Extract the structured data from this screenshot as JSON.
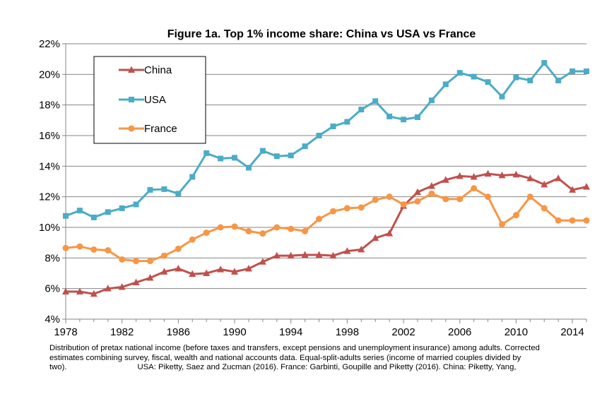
{
  "chart_data": {
    "type": "line",
    "title": "Figure 1a. Top 1% income share: China vs USA vs France",
    "xlabel": "",
    "ylabel": "",
    "xlim": [
      1978,
      2015
    ],
    "ylim": [
      4,
      22
    ],
    "x_ticks": [
      "1978",
      "1982",
      "1986",
      "1990",
      "1994",
      "1998",
      "2002",
      "2006",
      "2010",
      "2014"
    ],
    "y_ticks": [
      "4%",
      "6%",
      "8%",
      "10%",
      "12%",
      "14%",
      "16%",
      "18%",
      "20%",
      "22%"
    ],
    "grid": "horizontal",
    "legend_position": "top-left",
    "x": [
      1978,
      1979,
      1980,
      1981,
      1982,
      1983,
      1984,
      1985,
      1986,
      1987,
      1988,
      1989,
      1990,
      1991,
      1992,
      1993,
      1994,
      1995,
      1996,
      1997,
      1998,
      1999,
      2000,
      2001,
      2002,
      2003,
      2004,
      2005,
      2006,
      2007,
      2008,
      2009,
      2010,
      2011,
      2012,
      2013,
      2014,
      2015
    ],
    "series": [
      {
        "name": "China",
        "color": "#c0504d",
        "marker": "triangle",
        "values": [
          5.8,
          5.8,
          5.65,
          6.0,
          6.1,
          6.4,
          6.7,
          7.1,
          7.3,
          6.95,
          7.0,
          7.25,
          7.1,
          7.3,
          7.75,
          8.15,
          8.15,
          8.2,
          8.2,
          8.15,
          8.45,
          8.55,
          9.3,
          9.6,
          11.4,
          12.3,
          12.7,
          13.1,
          13.35,
          13.3,
          13.5,
          13.4,
          13.45,
          13.2,
          12.8,
          13.2,
          12.45,
          12.65
        ]
      },
      {
        "name": "USA",
        "color": "#4bacc6",
        "marker": "square",
        "values": [
          10.75,
          11.1,
          10.65,
          11.0,
          11.25,
          11.5,
          12.45,
          12.5,
          12.2,
          13.3,
          14.85,
          14.5,
          14.55,
          13.9,
          15.0,
          14.65,
          14.7,
          15.3,
          16.0,
          16.6,
          16.9,
          17.7,
          18.25,
          17.25,
          17.05,
          17.2,
          18.3,
          19.35,
          20.1,
          19.85,
          19.5,
          18.55,
          19.8,
          19.6,
          20.75,
          19.6,
          20.2,
          20.2
        ]
      },
      {
        "name": "France",
        "color": "#f79646",
        "marker": "circle",
        "values": [
          8.65,
          8.75,
          8.55,
          8.5,
          7.9,
          7.8,
          7.8,
          8.15,
          8.6,
          9.2,
          9.65,
          10.0,
          10.05,
          9.75,
          9.6,
          10.0,
          9.9,
          9.75,
          10.55,
          11.05,
          11.25,
          11.3,
          11.8,
          12.0,
          11.5,
          11.7,
          12.2,
          11.85,
          11.85,
          12.55,
          12.0,
          10.2,
          10.8,
          12.0,
          11.25,
          10.45,
          10.45,
          10.45
        ]
      }
    ]
  },
  "caption": {
    "line1": "Distribution of pretax national income (before taxes and transfers, except pensions and unemployment insurance) among adults. Corrected",
    "line2": "estimates combining survey, fiscal, wealth and national accounts data. Equal-split-adults series (income of married couples divided by",
    "line3_a": "two).",
    "line3_b": "USA: Piketty, Saez and Zucman (2016). France: Garbinti, Goupille and Piketty (2016). China: Piketty, Yang,"
  }
}
